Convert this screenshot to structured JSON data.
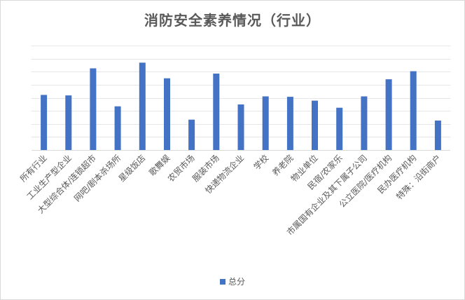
{
  "chart_data": {
    "type": "bar",
    "title": "消防安全素养情况（行业）",
    "categories": [
      "所有行业",
      "工业生产型企业",
      "大型综合体/连锁超市",
      "网吧/剧本杀场所",
      "星级饭店",
      "歌舞娱",
      "农贸市场",
      "服装市场",
      "快递物流企业",
      "学校",
      "养老院",
      "物业单位",
      "民宿/农家乐",
      "市属国有企业及其下属子公司",
      "公立医院/医疗机构",
      "民办医疗机构",
      "特殊：沿街商户"
    ],
    "series": [
      {
        "name": "总分",
        "color": "#4472c4",
        "values": [
          58,
          57.5,
          86,
          46,
          92,
          75.5,
          32,
          80.5,
          48,
          56.5,
          56,
          52,
          44.5,
          56.5,
          74.5,
          83,
          31
        ]
      }
    ],
    "ylim": [
      0,
      110
    ],
    "ytick_step": 13.75,
    "grid": true,
    "legend_position": "bottom"
  }
}
